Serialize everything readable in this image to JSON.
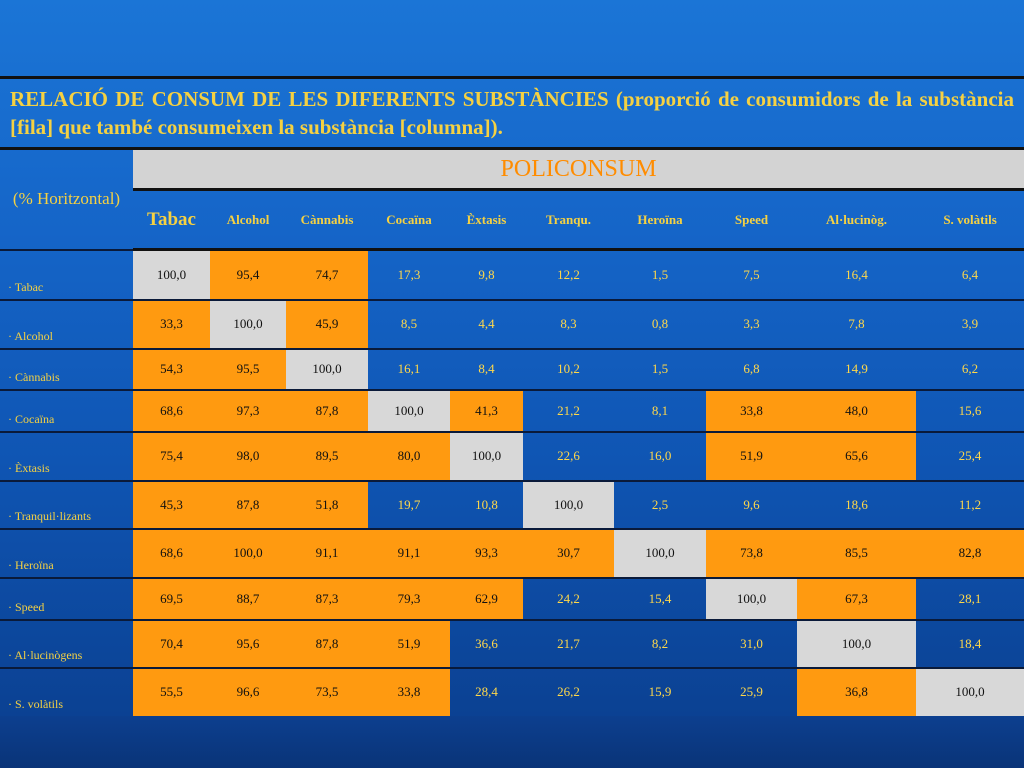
{
  "title": "RELACIÓ DE CONSUM DE LES DIFERENTS SUBSTÀNCIES (proporció de consumidors de la substància [fila] que també consumeixen la substància [columna]).",
  "table": {
    "group_header": "POLICONSUM",
    "corner_label": "(% Horitzontal)",
    "columns": [
      "Tabac",
      "Alcohol",
      "Cànnabis",
      "Cocaïna",
      "Èxtasis",
      "Tranqu.",
      "Heroïna",
      "Speed",
      "Al·lucinòg.",
      "S. volàtils"
    ],
    "rows": [
      {
        "label": "· Tabac",
        "values": [
          "100,0",
          "95,4",
          "74,7",
          "17,3",
          "9,8",
          "12,2",
          "1,5",
          "7,5",
          "16,4",
          "6,4"
        ]
      },
      {
        "label": "· Alcohol",
        "values": [
          "33,3",
          "100,0",
          "45,9",
          "8,5",
          "4,4",
          "8,3",
          "0,8",
          "3,3",
          "7,8",
          "3,9"
        ]
      },
      {
        "label": "· Cànnabis",
        "values": [
          "54,3",
          "95,5",
          "100,0",
          "16,1",
          "8,4",
          "10,2",
          "1,5",
          "6,8",
          "14,9",
          "6,2"
        ]
      },
      {
        "label": "· Cocaïna",
        "values": [
          "68,6",
          "97,3",
          "87,8",
          "100,0",
          "41,3",
          "21,2",
          "8,1",
          "33,8",
          "48,0",
          "15,6"
        ]
      },
      {
        "label": "· Èxtasis",
        "values": [
          "75,4",
          "98,0",
          "89,5",
          "80,0",
          "100,0",
          "22,6",
          "16,0",
          "51,9",
          "65,6",
          "25,4"
        ]
      },
      {
        "label": "· Tranquil·lizants",
        "values": [
          "45,3",
          "87,8",
          "51,8",
          "19,7",
          "10,8",
          "100,0",
          "2,5",
          "9,6",
          "18,6",
          "11,2"
        ]
      },
      {
        "label": "· Heroïna",
        "values": [
          "68,6",
          "100,0",
          "91,1",
          "91,1",
          "93,3",
          "30,7",
          "100,0",
          "73,8",
          "85,5",
          "82,8"
        ]
      },
      {
        "label": "· Speed",
        "values": [
          "69,5",
          "88,7",
          "87,3",
          "79,3",
          "62,9",
          "24,2",
          "15,4",
          "100,0",
          "67,3",
          "28,1"
        ]
      },
      {
        "label": "· Al·lucinògens",
        "values": [
          "70,4",
          "95,6",
          "87,8",
          "51,9",
          "36,6",
          "21,7",
          "8,2",
          "31,0",
          "100,0",
          "18,4"
        ]
      },
      {
        "label": "· S. volàtils",
        "values": [
          "55,5",
          "96,6",
          "73,5",
          "33,8",
          "28,4",
          "26,2",
          "15,9",
          "25,9",
          "36,8",
          "100,0"
        ]
      }
    ],
    "cell_colors": [
      [
        "g",
        "o",
        "o",
        "b",
        "b",
        "b",
        "b",
        "b",
        "b",
        "b"
      ],
      [
        "o",
        "g",
        "o",
        "b",
        "b",
        "b",
        "b",
        "b",
        "b",
        "b"
      ],
      [
        "o",
        "o",
        "g",
        "b",
        "b",
        "b",
        "b",
        "b",
        "b",
        "b"
      ],
      [
        "o",
        "o",
        "o",
        "g",
        "o",
        "b",
        "b",
        "o",
        "o",
        "b"
      ],
      [
        "o",
        "o",
        "o",
        "o",
        "g",
        "b",
        "b",
        "o",
        "o",
        "b"
      ],
      [
        "o",
        "o",
        "o",
        "b",
        "b",
        "g",
        "b",
        "b",
        "b",
        "b"
      ],
      [
        "o",
        "o",
        "o",
        "o",
        "o",
        "o",
        "g",
        "o",
        "o",
        "o"
      ],
      [
        "o",
        "o",
        "o",
        "o",
        "o",
        "b",
        "b",
        "g",
        "o",
        "b"
      ],
      [
        "o",
        "o",
        "o",
        "o",
        "b",
        "b",
        "b",
        "b",
        "g",
        "b"
      ],
      [
        "o",
        "o",
        "o",
        "o",
        "b",
        "b",
        "b",
        "b",
        "o",
        "g"
      ]
    ],
    "colors": {
      "orange": "#ff9a10",
      "grey": "#d8d8d8",
      "text_yellow": "#f5d142",
      "header_orange": "#ff8c00"
    }
  }
}
